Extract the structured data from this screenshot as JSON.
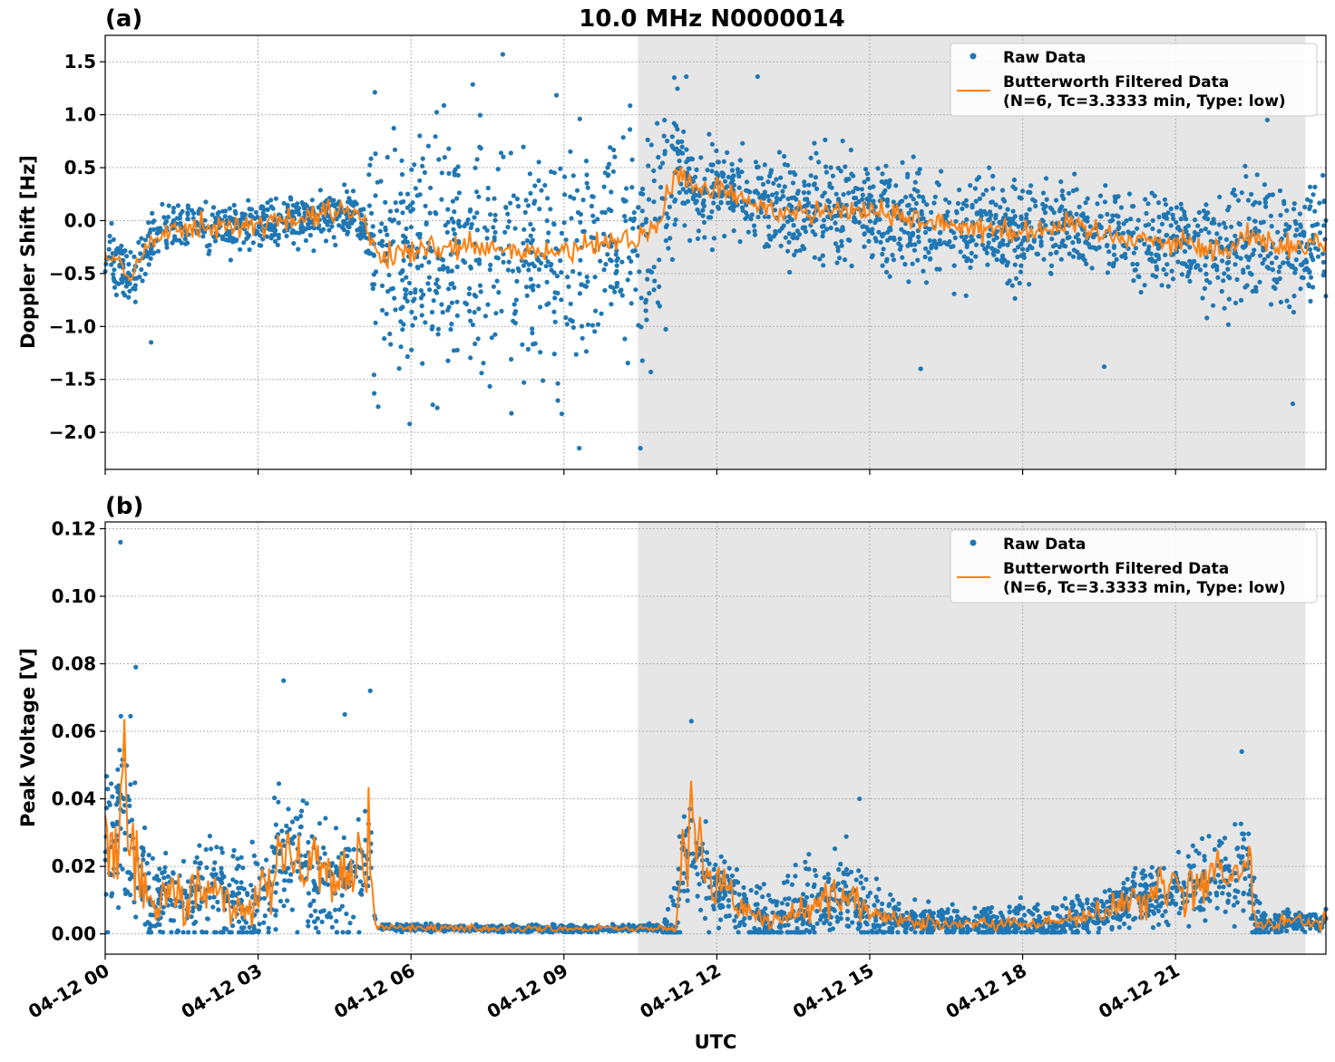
{
  "figure": {
    "title": "10.0 MHz N0000014",
    "xlabel": "UTC"
  },
  "colors": {
    "raw": "#1f77b4",
    "filtered": "#ff7f0e",
    "night_shade": "#e6e6e6"
  },
  "chart_data": [
    {
      "type": "scatter",
      "panel_label": "(a)",
      "ylabel": "Doppler Shift [Hz]",
      "xlim": [
        0,
        23.95
      ],
      "ylim": [
        -2.35,
        1.75
      ],
      "x_unit": "hours UTC since 04-12 00:00",
      "x_tick_values": [
        0,
        3,
        6,
        9,
        12,
        15,
        18,
        21
      ],
      "x_tick_labels": [
        "04-12 00",
        "04-12 03",
        "04-12 06",
        "04-12 09",
        "04-12 12",
        "04-12 15",
        "04-12 18",
        "04-12 21"
      ],
      "y_ticks": [
        1.5,
        1.0,
        0.5,
        0.0,
        -0.5,
        -1.0,
        -1.5,
        -2.0
      ],
      "y_tick_labels": [
        "1.5",
        "1.0",
        "0.5",
        "0.0",
        "−0.5",
        "−1.0",
        "−1.5",
        "−2.0"
      ],
      "grid": true,
      "legend_position": "top-right",
      "shaded_interval": [
        10.45,
        23.55
      ],
      "series": [
        {
          "name": "Raw Data",
          "kind": "points",
          "color": "#1f77b4",
          "center": {
            "x": [
              0,
              0.3,
              0.5,
              0.9,
              1.3,
              2.0,
              2.5,
              3.0,
              3.5,
              4.0,
              4.5,
              5.0,
              5.3,
              5.6,
              6.0,
              7.0,
              8.0,
              9.0,
              10.0,
              10.8,
              11.2,
              11.35,
              11.6,
              12.0,
              12.5,
              13.0,
              14.0,
              15.0,
              16.0,
              17.0,
              18.0,
              19.0,
              20.0,
              21.0,
              22.0,
              22.5,
              23.0,
              23.95
            ],
            "y": [
              -0.3,
              -0.45,
              -0.55,
              -0.2,
              -0.05,
              -0.05,
              -0.05,
              -0.05,
              0.0,
              0.0,
              0.1,
              0.05,
              -0.3,
              -0.35,
              -0.3,
              -0.25,
              -0.3,
              -0.3,
              -0.2,
              -0.1,
              0.45,
              0.4,
              0.3,
              0.3,
              0.2,
              0.1,
              0.1,
              0.1,
              0.0,
              -0.05,
              -0.1,
              -0.05,
              -0.15,
              -0.2,
              -0.3,
              -0.1,
              -0.25,
              -0.2
            ]
          },
          "spread": {
            "x": [
              0,
              1,
              5.1,
              5.3,
              10.9,
              11.35,
              13,
              17,
              21,
              22.5,
              23.95
            ],
            "y": [
              0.2,
              0.15,
              0.15,
              0.75,
              0.7,
              0.3,
              0.3,
              0.35,
              0.25,
              0.4,
              0.4
            ]
          },
          "outliers": [
            [
              9.3,
              -2.15
            ],
            [
              10.5,
              -2.15
            ],
            [
              7.8,
              1.57
            ],
            [
              11.4,
              1.36
            ],
            [
              12.8,
              1.36
            ],
            [
              23.3,
              -1.73
            ],
            [
              22.8,
              0.95
            ],
            [
              16.0,
              -1.4
            ],
            [
              19.6,
              -1.38
            ],
            [
              0.9,
              -1.15
            ]
          ]
        },
        {
          "name": "Butterworth Filtered Data\n(N=6, Tc=3.3333 min, Type: low)",
          "kind": "line",
          "color": "#ff7f0e",
          "x": [
            0,
            0.3,
            0.5,
            0.9,
            1.3,
            2.0,
            2.5,
            3.0,
            3.5,
            4.0,
            4.5,
            5.0,
            5.3,
            5.6,
            6.0,
            7.0,
            8.0,
            9.0,
            10.0,
            10.8,
            11.2,
            11.35,
            11.6,
            12.0,
            12.5,
            13.0,
            14.0,
            15.0,
            16.0,
            17.0,
            18.0,
            19.0,
            20.0,
            21.0,
            22.0,
            22.5,
            23.0,
            23.95
          ],
          "y": [
            -0.3,
            -0.45,
            -0.55,
            -0.2,
            -0.05,
            -0.05,
            -0.05,
            -0.05,
            0.0,
            0.0,
            0.1,
            0.05,
            -0.3,
            -0.35,
            -0.3,
            -0.25,
            -0.3,
            -0.3,
            -0.2,
            -0.1,
            0.45,
            0.4,
            0.3,
            0.3,
            0.2,
            0.1,
            0.1,
            0.1,
            0.0,
            -0.05,
            -0.1,
            -0.05,
            -0.15,
            -0.2,
            -0.3,
            -0.1,
            -0.25,
            -0.2
          ],
          "noise": 0.06
        }
      ]
    },
    {
      "type": "scatter",
      "panel_label": "(b)",
      "ylabel": "Peak Voltage [V]",
      "xlim": [
        0,
        23.95
      ],
      "ylim": [
        -0.006,
        0.122
      ],
      "x_unit": "hours UTC since 04-12 00:00",
      "x_tick_values": [
        0,
        3,
        6,
        9,
        12,
        15,
        18,
        21
      ],
      "x_tick_labels": [
        "04-12 00",
        "04-12 03",
        "04-12 06",
        "04-12 09",
        "04-12 12",
        "04-12 15",
        "04-12 18",
        "04-12 21"
      ],
      "y_ticks": [
        0.12,
        0.1,
        0.08,
        0.06,
        0.04,
        0.02,
        0.0
      ],
      "y_tick_labels": [
        "0.12",
        "0.10",
        "0.08",
        "0.06",
        "0.04",
        "0.02",
        "0.00"
      ],
      "grid": true,
      "legend_position": "top-right",
      "shaded_interval": [
        10.45,
        23.55
      ],
      "series": [
        {
          "name": "Raw Data",
          "kind": "points",
          "color": "#1f77b4",
          "center": {
            "x": [
              0,
              0.2,
              0.35,
              0.6,
              0.9,
              1.2,
              1.5,
              2.0,
              2.5,
              2.9,
              3.2,
              3.6,
              4.0,
              4.5,
              5.0,
              5.2,
              5.3,
              6.0,
              8.0,
              10.0,
              10.9,
              11.2,
              11.3,
              11.45,
              11.7,
              12.2,
              12.6,
              13.0,
              14.0,
              14.5,
              15.0,
              15.5,
              16.5,
              17.5,
              18.5,
              19.5,
              20.0,
              21.0,
              22.0,
              22.4,
              22.6,
              23.0,
              23.95
            ],
            "y": [
              0.025,
              0.03,
              0.045,
              0.025,
              0.008,
              0.012,
              0.01,
              0.015,
              0.01,
              0.008,
              0.015,
              0.025,
              0.02,
              0.012,
              0.018,
              0.025,
              0.002,
              0.0018,
              0.0015,
              0.0015,
              0.0018,
              0.001,
              0.02,
              0.025,
              0.02,
              0.012,
              0.006,
              0.004,
              0.008,
              0.013,
              0.006,
              0.004,
              0.003,
              0.003,
              0.003,
              0.006,
              0.009,
              0.013,
              0.018,
              0.02,
              0.003,
              0.003,
              0.004
            ]
          },
          "spread": {
            "x": [
              0,
              0.4,
              1,
              3.5,
              5.2,
              5.35,
              10.9,
              11.3,
              12.5,
              14.5,
              16,
              19.5,
              22.5,
              22.7,
              23.95
            ],
            "y": [
              0.014,
              0.02,
              0.007,
              0.014,
              0.012,
              0.0007,
              0.0007,
              0.012,
              0.006,
              0.008,
              0.003,
              0.004,
              0.01,
              0.002,
              0.002
            ]
          },
          "outliers": [
            [
              0.3,
              0.116
            ],
            [
              0.6,
              0.079
            ],
            [
              3.5,
              0.075
            ],
            [
              5.2,
              0.072
            ],
            [
              11.5,
              0.063
            ],
            [
              22.3,
              0.054
            ],
            [
              14.8,
              0.04
            ],
            [
              4.7,
              0.065
            ]
          ]
        },
        {
          "name": "Butterworth Filtered Data\n(N=6, Tc=3.3333 min, Type: low)",
          "kind": "line",
          "color": "#ff7f0e",
          "x": [
            0,
            0.2,
            0.35,
            0.6,
            0.9,
            1.2,
            1.5,
            2.0,
            2.5,
            2.9,
            3.2,
            3.6,
            4.0,
            4.5,
            5.0,
            5.2,
            5.3,
            6.0,
            8.0,
            10.0,
            10.9,
            11.2,
            11.3,
            11.45,
            11.7,
            12.2,
            12.6,
            13.0,
            14.0,
            14.5,
            15.0,
            15.5,
            16.5,
            17.5,
            18.5,
            19.5,
            20.0,
            21.0,
            22.0,
            22.4,
            22.6,
            23.0,
            23.95
          ],
          "y": [
            0.025,
            0.03,
            0.045,
            0.025,
            0.008,
            0.012,
            0.01,
            0.015,
            0.01,
            0.008,
            0.015,
            0.025,
            0.02,
            0.012,
            0.018,
            0.025,
            0.002,
            0.0018,
            0.0015,
            0.0015,
            0.0018,
            0.001,
            0.02,
            0.025,
            0.02,
            0.012,
            0.006,
            0.004,
            0.008,
            0.013,
            0.006,
            0.004,
            0.003,
            0.003,
            0.003,
            0.006,
            0.009,
            0.013,
            0.018,
            0.02,
            0.003,
            0.003,
            0.004
          ],
          "noise": 0.35
        }
      ]
    }
  ]
}
